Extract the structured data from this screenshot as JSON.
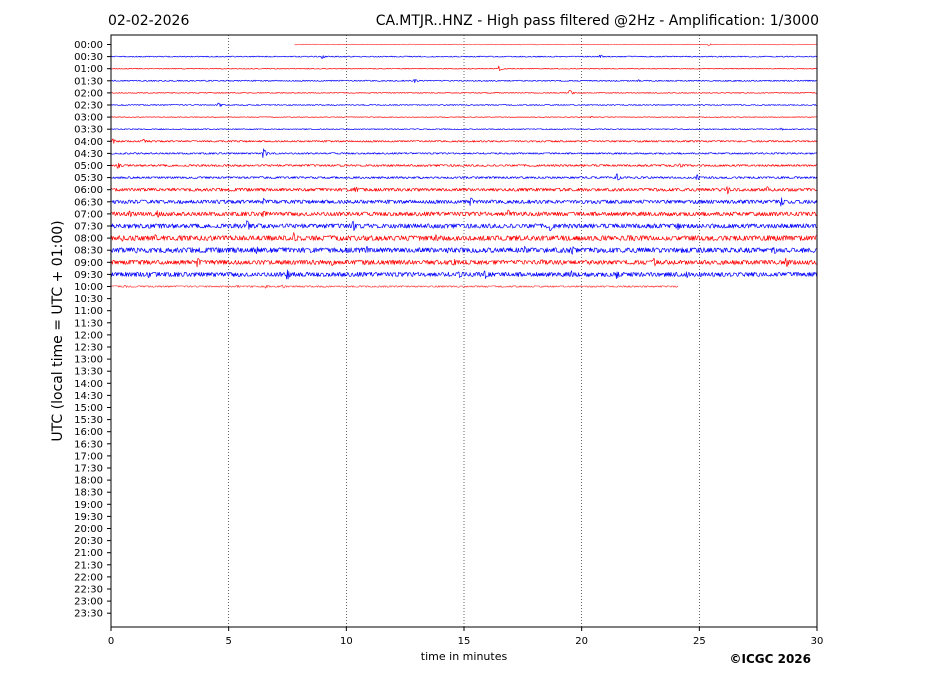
{
  "header": {
    "date": "02-02-2026",
    "title": "CA.MTJR..HNZ - High pass filtered @2Hz - Amplification: 1/3000"
  },
  "footer": {
    "copyright": "©ICGC 2026"
  },
  "chart_data": {
    "type": "line",
    "xlabel": "time in minutes",
    "ylabel": "UTC (local time = UTC + 01:00)",
    "xlim": [
      0,
      30
    ],
    "x_ticks": [
      0,
      5,
      10,
      15,
      20,
      25,
      30
    ],
    "vertical_gridlines_at": [
      5,
      10,
      15,
      20,
      25
    ],
    "grid": "vertical dotted",
    "row_labels": [
      "00:00",
      "00:30",
      "01:00",
      "01:30",
      "02:00",
      "02:30",
      "03:00",
      "03:30",
      "04:00",
      "04:30",
      "05:00",
      "05:30",
      "06:00",
      "06:30",
      "07:00",
      "07:30",
      "08:00",
      "08:30",
      "09:00",
      "09:30",
      "10:00",
      "10:30",
      "11:00",
      "11:30",
      "12:00",
      "12:30",
      "13:00",
      "13:30",
      "14:00",
      "14:30",
      "15:00",
      "15:30",
      "16:00",
      "16:30",
      "17:00",
      "17:30",
      "18:00",
      "18:30",
      "19:00",
      "19:30",
      "20:00",
      "20:30",
      "21:00",
      "21:30",
      "22:00",
      "22:30",
      "23:00",
      "23:30"
    ],
    "colors": {
      "even_rows": "#ff0000",
      "odd_rows": "#0000ff"
    },
    "traces": [
      {
        "row": "00:00",
        "start": 7.8,
        "end": 30,
        "noise": 0.03,
        "events": [
          {
            "t": 25.4,
            "amp": 0.25
          }
        ]
      },
      {
        "row": "00:30",
        "start": 0,
        "end": 30,
        "noise": 0.05,
        "events": [
          {
            "t": 9.0,
            "amp": 0.3
          },
          {
            "t": 20.8,
            "amp": 0.25
          }
        ]
      },
      {
        "row": "01:00",
        "start": 0,
        "end": 30,
        "noise": 0.04,
        "events": [
          {
            "t": 16.5,
            "amp": 0.4
          }
        ]
      },
      {
        "row": "01:30",
        "start": 0,
        "end": 30,
        "noise": 0.06,
        "events": [
          {
            "t": 12.9,
            "amp": 0.3
          },
          {
            "t": 22.4,
            "amp": 0.2
          }
        ]
      },
      {
        "row": "02:00",
        "start": 0,
        "end": 30,
        "noise": 0.04,
        "events": [
          {
            "t": 19.5,
            "amp": 0.45
          }
        ]
      },
      {
        "row": "02:30",
        "start": 0,
        "end": 30,
        "noise": 0.05,
        "events": [
          {
            "t": 4.6,
            "amp": 0.4
          }
        ]
      },
      {
        "row": "03:00",
        "start": 0,
        "end": 30,
        "noise": 0.03,
        "events": [
          {
            "t": 20.4,
            "amp": 0.15
          }
        ]
      },
      {
        "row": "03:30",
        "start": 0,
        "end": 30,
        "noise": 0.05,
        "events": [
          {
            "t": 28.5,
            "amp": 0.2
          }
        ]
      },
      {
        "row": "04:00",
        "start": 0,
        "end": 30,
        "noise": 0.08,
        "events": [
          {
            "t": 0.1,
            "amp": 0.4
          },
          {
            "t": 1.4,
            "amp": 0.35
          }
        ]
      },
      {
        "row": "04:30",
        "start": 0,
        "end": 30,
        "noise": 0.08,
        "events": [
          {
            "t": 6.5,
            "amp": 0.7
          }
        ]
      },
      {
        "row": "05:00",
        "start": 0,
        "end": 30,
        "noise": 0.1,
        "events": [
          {
            "t": 0.3,
            "amp": 0.55
          },
          {
            "t": 24.2,
            "amp": 0.4
          }
        ]
      },
      {
        "row": "05:30",
        "start": 0,
        "end": 30,
        "noise": 0.1,
        "events": [
          {
            "t": 21.5,
            "amp": 0.6
          },
          {
            "t": 24.9,
            "amp": 0.5
          }
        ]
      },
      {
        "row": "06:00",
        "start": 0,
        "end": 30,
        "noise": 0.15,
        "events": [
          {
            "t": 10.4,
            "amp": 0.5
          },
          {
            "t": 26.2,
            "amp": 0.7
          },
          {
            "t": 27.9,
            "amp": 0.45
          }
        ]
      },
      {
        "row": "06:30",
        "start": 0,
        "end": 30,
        "noise": 0.18,
        "events": [
          {
            "t": 6.5,
            "amp": 0.5
          },
          {
            "t": 15.3,
            "amp": 0.7
          },
          {
            "t": 28.5,
            "amp": 0.7
          }
        ]
      },
      {
        "row": "07:00",
        "start": 0,
        "end": 30,
        "noise": 0.2,
        "events": [
          {
            "t": 0.8,
            "amp": 0.6
          },
          {
            "t": 2.0,
            "amp": 0.55
          },
          {
            "t": 6.5,
            "amp": 0.5
          },
          {
            "t": 16.9,
            "amp": 0.6
          }
        ]
      },
      {
        "row": "07:30",
        "start": 0,
        "end": 30,
        "noise": 0.22,
        "events": [
          {
            "t": 5.8,
            "amp": 0.9
          },
          {
            "t": 10.3,
            "amp": 0.85
          },
          {
            "t": 18.7,
            "amp": 0.7
          },
          {
            "t": 24.1,
            "amp": 0.55
          }
        ]
      },
      {
        "row": "08:00",
        "start": 0,
        "end": 30,
        "noise": 0.25,
        "events": [
          {
            "t": 0.5,
            "amp": 0.5
          },
          {
            "t": 1.9,
            "amp": 0.6
          },
          {
            "t": 7.8,
            "amp": 0.85
          },
          {
            "t": 13.8,
            "amp": 0.5
          },
          {
            "t": 22.1,
            "amp": 0.5
          },
          {
            "t": 28.3,
            "amp": 0.45
          }
        ]
      },
      {
        "row": "08:30",
        "start": 0,
        "end": 30,
        "noise": 0.25,
        "events": [
          {
            "t": 1.1,
            "amp": 0.5
          },
          {
            "t": 6.2,
            "amp": 0.6
          },
          {
            "t": 10.9,
            "amp": 0.55
          },
          {
            "t": 14.3,
            "amp": 0.5
          },
          {
            "t": 17.6,
            "amp": 0.6
          },
          {
            "t": 19.6,
            "amp": 0.75
          },
          {
            "t": 28.2,
            "amp": 0.6
          }
        ]
      },
      {
        "row": "09:00",
        "start": 0,
        "end": 30,
        "noise": 0.22,
        "events": [
          {
            "t": 3.7,
            "amp": 0.9
          },
          {
            "t": 9.4,
            "amp": 0.5
          },
          {
            "t": 14.6,
            "amp": 0.55
          },
          {
            "t": 18.3,
            "amp": 0.5
          },
          {
            "t": 23.1,
            "amp": 0.6
          },
          {
            "t": 28.7,
            "amp": 0.85
          }
        ]
      },
      {
        "row": "09:30",
        "start": 0,
        "end": 30,
        "noise": 0.22,
        "events": [
          {
            "t": 1.6,
            "amp": 0.55
          },
          {
            "t": 7.5,
            "amp": 0.85
          },
          {
            "t": 14.8,
            "amp": 0.6
          },
          {
            "t": 15.9,
            "amp": 0.7
          },
          {
            "t": 19.6,
            "amp": 0.55
          },
          {
            "t": 21.5,
            "amp": 0.75
          },
          {
            "t": 24.5,
            "amp": 0.5
          }
        ]
      },
      {
        "row": "10:00",
        "start": 0,
        "end": 24.1,
        "noise": 0.08,
        "events": [
          {
            "t": 0.6,
            "amp": 0.25
          },
          {
            "t": 5.4,
            "amp": 0.2
          },
          {
            "t": 6.6,
            "amp": 0.3
          },
          {
            "t": 7.3,
            "amp": 0.3
          }
        ]
      }
    ]
  }
}
